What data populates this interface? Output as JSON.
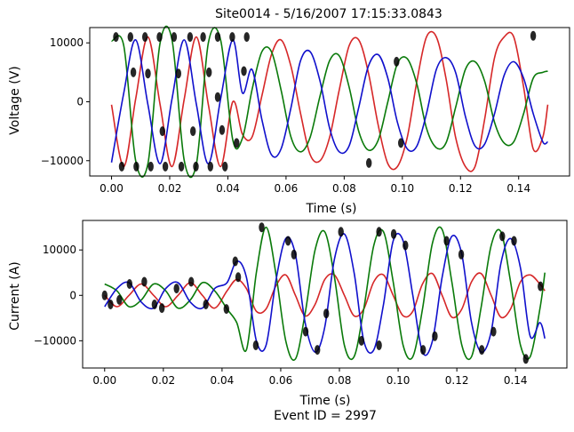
{
  "figure_title": "Site0014 - 5/16/2007 17:15:33.0843",
  "footer_text": "Event ID = 2997",
  "colors": {
    "phase_a": "#d62728",
    "phase_b": "#0a7a0a",
    "phase_c": "#1010cc",
    "markers": "#000000"
  },
  "chart_data": [
    {
      "type": "line",
      "title": "Site0014 - 5/16/2007 17:15:33.0843",
      "xlabel": "Time (s)",
      "ylabel": "Voltage (V)",
      "xlim": [
        -0.0075,
        0.1575
      ],
      "ylim": [
        -12600,
        12600
      ],
      "xticks": [
        0.0,
        0.02,
        0.04,
        0.06,
        0.08,
        0.1,
        0.12,
        0.14
      ],
      "xtick_labels": [
        "0.00",
        "0.02",
        "0.04",
        "0.06",
        "0.08",
        "0.10",
        "0.12",
        "0.14"
      ],
      "yticks": [
        -10000,
        0,
        10000
      ],
      "ytick_labels": [
        "−10000",
        "0",
        "10000"
      ],
      "grid": false,
      "legend": "none",
      "series": [
        {
          "color": "#d62728",
          "x": [
            0.0,
            0.0042,
            0.0083,
            0.0125,
            0.0167,
            0.0208,
            0.025,
            0.0292,
            0.0333,
            0.0375,
            0.0417,
            0.045,
            0.0483,
            0.0517,
            0.055,
            0.0583,
            0.0617,
            0.065,
            0.0683,
            0.0717,
            0.075,
            0.0783,
            0.0817,
            0.085,
            0.0883,
            0.0917,
            0.095,
            0.0983,
            0.1017,
            0.105,
            0.1083,
            0.1117,
            0.115,
            0.1183,
            0.1217,
            0.125,
            0.1283,
            0.1317,
            0.135,
            0.1383,
            0.1417,
            0.145,
            0.1483,
            0.15
          ],
          "y": [
            -500,
            -11000,
            500,
            11000,
            -500,
            -11000,
            500,
            11000,
            -500,
            -11000,
            0,
            -5500,
            -6000,
            1000,
            8000,
            10500,
            6000,
            -2000,
            -9000,
            -10000,
            -6000,
            2000,
            9500,
            10500,
            5000,
            -4000,
            -10500,
            -11000,
            -6000,
            3500,
            11000,
            11000,
            4000,
            -6000,
            -11000,
            -11000,
            -3000,
            7500,
            11000,
            11000,
            2500,
            -8000,
            -6000,
            -500
          ]
        },
        {
          "color": "#0a7a0a",
          "x": [
            0.0,
            0.0042,
            0.0083,
            0.0125,
            0.0167,
            0.0208,
            0.025,
            0.0292,
            0.0333,
            0.0375,
            0.0417,
            0.045,
            0.0483,
            0.0517,
            0.055,
            0.0583,
            0.0617,
            0.065,
            0.0683,
            0.0717,
            0.075,
            0.0783,
            0.0817,
            0.085,
            0.0883,
            0.0917,
            0.095,
            0.0983,
            0.1017,
            0.105,
            0.1083,
            0.1117,
            0.115,
            0.1183,
            0.1217,
            0.125,
            0.1283,
            0.1317,
            0.135,
            0.1383,
            0.1417,
            0.145,
            0.1483,
            0.15
          ],
          "y": [
            10300,
            9500,
            -10000,
            -10500,
            10000,
            10500,
            -10000,
            -10500,
            10000,
            10500,
            -6500,
            -6200,
            2000,
            8500,
            8500,
            2000,
            -6000,
            -8500,
            -6000,
            1000,
            7000,
            7800,
            2500,
            -5000,
            -8200,
            -6500,
            0,
            6500,
            7300,
            3000,
            -4500,
            -7800,
            -7000,
            -1000,
            5500,
            6800,
            3500,
            -3500,
            -7000,
            -6800,
            -2000,
            4000,
            5000,
            5200
          ]
        },
        {
          "color": "#1010cc",
          "x": [
            0.0,
            0.0042,
            0.0083,
            0.0125,
            0.0167,
            0.0208,
            0.025,
            0.0292,
            0.0333,
            0.0375,
            0.0417,
            0.045,
            0.0483,
            0.0517,
            0.055,
            0.0583,
            0.0617,
            0.065,
            0.0683,
            0.0717,
            0.075,
            0.0783,
            0.0817,
            0.085,
            0.0883,
            0.0917,
            0.095,
            0.0983,
            0.1017,
            0.105,
            0.1083,
            0.1117,
            0.115,
            0.1183,
            0.1217,
            0.125,
            0.1283,
            0.1317,
            0.135,
            0.1383,
            0.1417,
            0.145,
            0.1483,
            0.15
          ],
          "y": [
            -10300,
            1500,
            10500,
            -500,
            -10500,
            500,
            10500,
            -500,
            -10500,
            500,
            10500,
            1500,
            5500,
            -3000,
            -9000,
            -8000,
            -1000,
            7000,
            8500,
            3500,
            -4500,
            -8500,
            -7500,
            -1000,
            6000,
            8000,
            4000,
            -3500,
            -8000,
            -7500,
            -2000,
            5500,
            7500,
            5000,
            -2500,
            -7500,
            -7200,
            -2000,
            4500,
            6800,
            4000,
            -2000,
            -6800,
            -6800
          ]
        }
      ],
      "markers": [
        {
          "x": 0.0015,
          "y": 11000
        },
        {
          "x": 0.0035,
          "y": -11000
        },
        {
          "x": 0.0065,
          "y": 11000
        },
        {
          "x": 0.0085,
          "y": -11000
        },
        {
          "x": 0.0115,
          "y": 11000
        },
        {
          "x": 0.0135,
          "y": -11000
        },
        {
          "x": 0.0165,
          "y": 11000
        },
        {
          "x": 0.0185,
          "y": -11000
        },
        {
          "x": 0.0215,
          "y": 11000
        },
        {
          "x": 0.024,
          "y": -11000
        },
        {
          "x": 0.027,
          "y": 11000
        },
        {
          "x": 0.029,
          "y": -11000
        },
        {
          "x": 0.0315,
          "y": 11000
        },
        {
          "x": 0.034,
          "y": -11000
        },
        {
          "x": 0.0365,
          "y": 11000
        },
        {
          "x": 0.039,
          "y": -11000
        },
        {
          "x": 0.0415,
          "y": 11000
        },
        {
          "x": 0.0465,
          "y": 11000
        },
        {
          "x": 0.0885,
          "y": -10400
        },
        {
          "x": 0.0995,
          "y": -7000
        },
        {
          "x": 0.0075,
          "y": 5000
        },
        {
          "x": 0.0125,
          "y": 4800
        },
        {
          "x": 0.0175,
          "y": -5000
        },
        {
          "x": 0.023,
          "y": 4800
        },
        {
          "x": 0.028,
          "y": -5000
        },
        {
          "x": 0.0335,
          "y": 5000
        },
        {
          "x": 0.038,
          "y": -4800
        },
        {
          "x": 0.043,
          "y": -7000
        },
        {
          "x": 0.0455,
          "y": 5200
        },
        {
          "x": 0.098,
          "y": 6800
        },
        {
          "x": 0.145,
          "y": 11200
        },
        {
          "x": 0.0365,
          "y": 800
        }
      ]
    },
    {
      "type": "line",
      "xlabel": "Time (s)",
      "ylabel": "Current (A)",
      "xlim": [
        -0.0075,
        0.1575
      ],
      "ylim": [
        -16000,
        16500
      ],
      "xticks": [
        0.0,
        0.02,
        0.04,
        0.06,
        0.08,
        0.1,
        0.12,
        0.14
      ],
      "xtick_labels": [
        "0.00",
        "0.02",
        "0.04",
        "0.06",
        "0.08",
        "0.10",
        "0.12",
        "0.14"
      ],
      "yticks": [
        -10000,
        0,
        10000
      ],
      "ytick_labels": [
        "−10000",
        "0",
        "10000"
      ],
      "grid": false,
      "legend": "none",
      "series": [
        {
          "color": "#d62728",
          "x": [
            0.0,
            0.0042,
            0.0083,
            0.0125,
            0.0167,
            0.0208,
            0.025,
            0.0292,
            0.0333,
            0.0375,
            0.0417,
            0.045,
            0.0483,
            0.0517,
            0.055,
            0.0583,
            0.0617,
            0.065,
            0.0683,
            0.0717,
            0.075,
            0.0783,
            0.0817,
            0.085,
            0.0883,
            0.0917,
            0.095,
            0.0983,
            0.1017,
            0.105,
            0.1083,
            0.1117,
            0.115,
            0.1183,
            0.1217,
            0.125,
            0.1283,
            0.1317,
            0.135,
            0.1383,
            0.1417,
            0.145,
            0.1483,
            0.15
          ],
          "y": [
            0,
            -2500,
            0,
            2500,
            0,
            -2500,
            0,
            2800,
            0,
            -2800,
            1000,
            3500,
            1500,
            -3500,
            -3000,
            2000,
            4500,
            0,
            -4500,
            -2000,
            3500,
            4500,
            0,
            -4500,
            -3000,
            3000,
            4500,
            0,
            -4500,
            -3500,
            2500,
            4800,
            0,
            -4800,
            -3000,
            3000,
            4800,
            0,
            -4800,
            -3000,
            3000,
            4500,
            2500,
            1000
          ]
        },
        {
          "color": "#0a7a0a",
          "x": [
            0.0,
            0.0042,
            0.0083,
            0.0125,
            0.0167,
            0.0208,
            0.025,
            0.0292,
            0.0333,
            0.0375,
            0.0417,
            0.045,
            0.0483,
            0.0517,
            0.055,
            0.0583,
            0.0617,
            0.065,
            0.0683,
            0.0717,
            0.075,
            0.0783,
            0.0817,
            0.085,
            0.0883,
            0.0917,
            0.095,
            0.0983,
            0.1017,
            0.105,
            0.1083,
            0.1117,
            0.115,
            0.1183,
            0.1217,
            0.125,
            0.1283,
            0.1317,
            0.135,
            0.1383,
            0.1417,
            0.145,
            0.1483,
            0.15
          ],
          "y": [
            2500,
            1000,
            -2500,
            -1000,
            2500,
            1000,
            -2800,
            -1000,
            2800,
            1000,
            -3000,
            -6000,
            -12000,
            5000,
            15000,
            5000,
            -10000,
            -14000,
            -4000,
            10000,
            14000,
            4000,
            -11000,
            -13500,
            -3000,
            11000,
            14000,
            3000,
            -11000,
            -13500,
            -3000,
            11500,
            14500,
            3000,
            -11000,
            -13500,
            -2500,
            11000,
            14000,
            3000,
            -11000,
            -13500,
            -3000,
            5000
          ]
        },
        {
          "color": "#1010cc",
          "x": [
            0.0,
            0.0042,
            0.0083,
            0.0125,
            0.0167,
            0.0208,
            0.025,
            0.0292,
            0.0333,
            0.0375,
            0.0417,
            0.045,
            0.0483,
            0.0517,
            0.055,
            0.0583,
            0.0617,
            0.065,
            0.0683,
            0.0717,
            0.075,
            0.0783,
            0.0817,
            0.085,
            0.0883,
            0.0917,
            0.095,
            0.0983,
            0.1017,
            0.105,
            0.1083,
            0.1117,
            0.115,
            0.1183,
            0.1217,
            0.125,
            0.1283,
            0.1317,
            0.135,
            0.1383,
            0.1417,
            0.145,
            0.1483,
            0.15
          ],
          "y": [
            -2500,
            1500,
            2800,
            -1500,
            -2800,
            1500,
            2800,
            -1500,
            -2800,
            1500,
            2800,
            7500,
            4000,
            -10000,
            -11000,
            3000,
            12500,
            9000,
            -6000,
            -12500,
            -7000,
            8000,
            13500,
            5000,
            -10000,
            -12000,
            -2000,
            12000,
            12000,
            0,
            -12500,
            -10000,
            4000,
            13000,
            9000,
            -6000,
            -12500,
            -8000,
            7000,
            12500,
            6000,
            -9000,
            -6000,
            -9500
          ]
        }
      ],
      "markers": [
        {
          "x": 0.0,
          "y": 0
        },
        {
          "x": 0.002,
          "y": -2000
        },
        {
          "x": 0.005,
          "y": -1000
        },
        {
          "x": 0.0085,
          "y": 2500
        },
        {
          "x": 0.0135,
          "y": 3000
        },
        {
          "x": 0.017,
          "y": -2000
        },
        {
          "x": 0.0195,
          "y": -2800
        },
        {
          "x": 0.0245,
          "y": 1500
        },
        {
          "x": 0.0295,
          "y": 3000
        },
        {
          "x": 0.0345,
          "y": -2000
        },
        {
          "x": 0.0415,
          "y": -3000
        },
        {
          "x": 0.0445,
          "y": 7500
        },
        {
          "x": 0.0535,
          "y": 15000
        },
        {
          "x": 0.0515,
          "y": -11000
        },
        {
          "x": 0.0625,
          "y": 12000
        },
        {
          "x": 0.0645,
          "y": 9000
        },
        {
          "x": 0.0685,
          "y": -8000
        },
        {
          "x": 0.0725,
          "y": -12000
        },
        {
          "x": 0.0805,
          "y": 14000
        },
        {
          "x": 0.0875,
          "y": -10000
        },
        {
          "x": 0.0935,
          "y": -11000
        },
        {
          "x": 0.0985,
          "y": 13500
        },
        {
          "x": 0.1025,
          "y": 11000
        },
        {
          "x": 0.1085,
          "y": -12000
        },
        {
          "x": 0.1125,
          "y": -9000
        },
        {
          "x": 0.1165,
          "y": 12000
        },
        {
          "x": 0.1215,
          "y": 9000
        },
        {
          "x": 0.1285,
          "y": -12000
        },
        {
          "x": 0.1325,
          "y": -8000
        },
        {
          "x": 0.1355,
          "y": 13000
        },
        {
          "x": 0.1395,
          "y": 12000
        },
        {
          "x": 0.1435,
          "y": -14000
        },
        {
          "x": 0.1485,
          "y": 2000
        },
        {
          "x": 0.0455,
          "y": 4000
        },
        {
          "x": 0.0935,
          "y": 14000
        },
        {
          "x": 0.0755,
          "y": -4000
        }
      ]
    }
  ]
}
